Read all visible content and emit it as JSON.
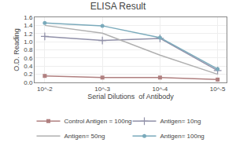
{
  "chart_data": {
    "type": "line",
    "title": "ELISA Result",
    "xlabel": "Serial Dilutions  of Antibody",
    "ylabel": "O.D. Reading",
    "x": [
      0.01,
      0.001,
      0.0001,
      1e-05
    ],
    "series": [
      {
        "name": "Control Antigen = 100ng",
        "color": "#b08080",
        "marker": "square",
        "values": [
          0.16,
          0.12,
          0.12,
          0.07
        ]
      },
      {
        "name": "Antigen= 10ng",
        "color": "#9090a8",
        "marker": "plus",
        "values": [
          1.13,
          1.03,
          1.08,
          0.29
        ]
      },
      {
        "name": "Antigen= 50ng",
        "color": "#b0b0b0",
        "marker": "none",
        "values": [
          1.4,
          1.21,
          0.67,
          0.2
        ]
      },
      {
        "name": "Antigen= 100ng",
        "color": "#7aaabb",
        "marker": "circle",
        "values": [
          1.46,
          1.39,
          1.1,
          0.33
        ]
      }
    ],
    "log": "x",
    "xlim": [
      0.015,
      7e-06
    ],
    "xticks": [
      {
        "value": 0.01,
        "label": "10^-2"
      },
      {
        "value": 0.001,
        "label": "10^-3"
      },
      {
        "value": 0.0001,
        "label": "10^-4"
      },
      {
        "value": 1e-05,
        "label": "10^-5"
      }
    ],
    "ylim": [
      0,
      1.6
    ],
    "yticks": [
      {
        "value": 0,
        "label": "0.0"
      },
      0.2,
      0.4,
      0.6,
      0.8,
      {
        "value": 1.0,
        "label": "1.0"
      },
      1.2,
      1.4,
      1.6
    ],
    "grid": true,
    "legend": "bottom"
  }
}
